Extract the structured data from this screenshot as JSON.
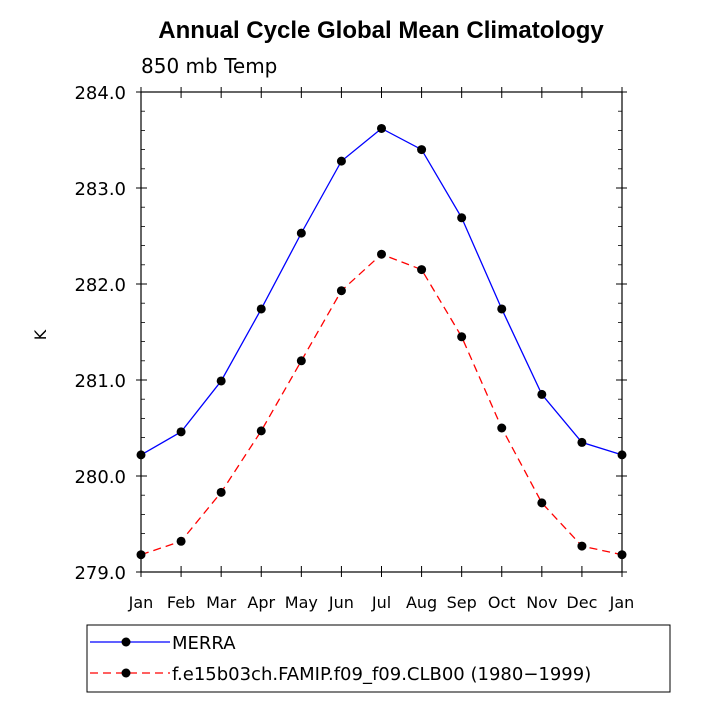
{
  "chart_data": {
    "type": "line",
    "title": "Annual Cycle Global Mean Climatology",
    "subtitle": "850 mb Temp",
    "ylabel": "K",
    "xlabel": "",
    "categories": [
      "Jan",
      "Feb",
      "Mar",
      "Apr",
      "May",
      "Jun",
      "Jul",
      "Aug",
      "Sep",
      "Oct",
      "Nov",
      "Dec",
      "Jan"
    ],
    "ylim": [
      279.0,
      284.0
    ],
    "yticks": [
      "279.0",
      "280.0",
      "281.0",
      "282.0",
      "283.0",
      "284.0"
    ],
    "grid": false,
    "legend_position": "bottom",
    "series": [
      {
        "name": "MERRA",
        "color": "#0000ff",
        "line_style": "solid",
        "values": [
          280.22,
          280.46,
          280.99,
          281.74,
          282.53,
          283.28,
          283.62,
          283.4,
          282.69,
          281.74,
          280.85,
          280.35,
          280.22
        ]
      },
      {
        "name": "f.e15b03ch.FAMIP.f09_f09.CLB00 (1980−1999)",
        "color": "#ff0000",
        "line_style": "dashed",
        "values": [
          279.18,
          279.32,
          279.83,
          280.47,
          281.2,
          281.93,
          282.31,
          282.15,
          281.45,
          280.5,
          279.72,
          279.27,
          279.18
        ]
      }
    ]
  }
}
